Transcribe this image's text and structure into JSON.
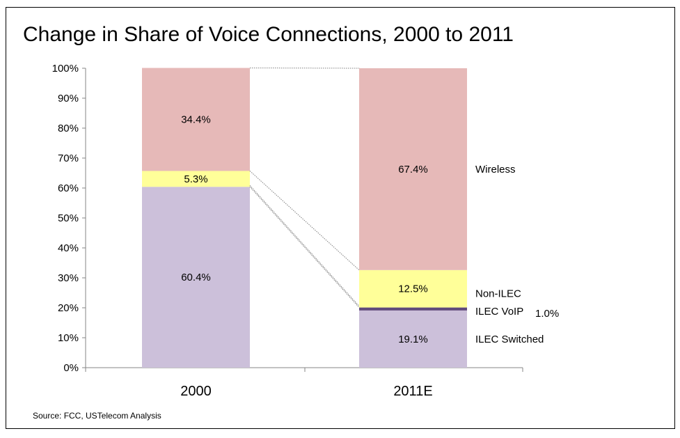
{
  "chart_data": {
    "type": "bar",
    "stacked": true,
    "title": "Change in Share of Voice Connections, 2000 to 2011",
    "categories": [
      "2000",
      "2011E"
    ],
    "series": [
      {
        "name": "ILEC Switched",
        "label": "ILEC Switched",
        "color": "#ccc0da",
        "values": [
          60.4,
          19.1
        ],
        "data_labels": [
          "60.4%",
          "19.1%"
        ]
      },
      {
        "name": "ILEC VoIP",
        "label": "ILEC VoIP",
        "extra_label": "1.0%",
        "color": "#604a7b",
        "values": [
          0,
          1.0
        ],
        "data_labels": [
          "",
          ""
        ]
      },
      {
        "name": "Non-ILEC",
        "label": "Non-ILEC",
        "color": "#ffff99",
        "values": [
          5.3,
          12.5
        ],
        "data_labels": [
          "5.3%",
          "12.5%"
        ]
      },
      {
        "name": "Wireless",
        "label": "Wireless",
        "color": "#e6b9b8",
        "values": [
          34.4,
          67.4
        ],
        "data_labels": [
          "34.4%",
          "67.4%"
        ]
      }
    ],
    "ylim": [
      0,
      100
    ],
    "yticks": [
      "0%",
      "10%",
      "20%",
      "30%",
      "40%",
      "50%",
      "60%",
      "70%",
      "80%",
      "90%",
      "100%"
    ],
    "xlabel": "",
    "ylabel": "",
    "grid": false,
    "series_connector_lines": "dotted"
  },
  "source": "Source: FCC, USTelecom Analysis"
}
